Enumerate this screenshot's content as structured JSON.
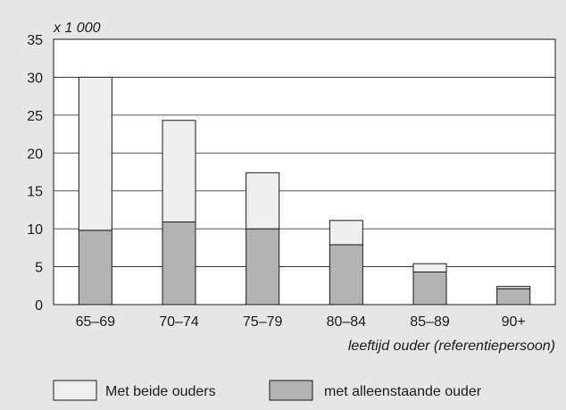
{
  "chart_data": {
    "type": "bar",
    "stacked": true,
    "categories": [
      "65–69",
      "70–74",
      "75–79",
      "80–84",
      "85–89",
      "90+"
    ],
    "series": [
      {
        "name": "met alleenstaande ouder",
        "values": [
          9.8,
          10.9,
          10.0,
          7.9,
          4.3,
          2.1
        ],
        "color": "#b3b3b3"
      },
      {
        "name": "Met beide ouders",
        "values": [
          20.2,
          13.4,
          7.4,
          3.2,
          1.1,
          0.3
        ],
        "color": "#eeeeee"
      }
    ],
    "unit_label": "x 1 000",
    "xlabel": "leeftijd ouder (referentiepersoon)",
    "ylabel": "",
    "ylim": [
      0,
      35
    ],
    "yticks": [
      0,
      5,
      10,
      15,
      20,
      25,
      30,
      35
    ],
    "grid": true,
    "legend": {
      "placement": "bottom",
      "entries": [
        {
          "label": "Met beide ouders",
          "color": "#eeeeee"
        },
        {
          "label": "met alleenstaande ouder",
          "color": "#b3b3b3"
        }
      ]
    }
  }
}
